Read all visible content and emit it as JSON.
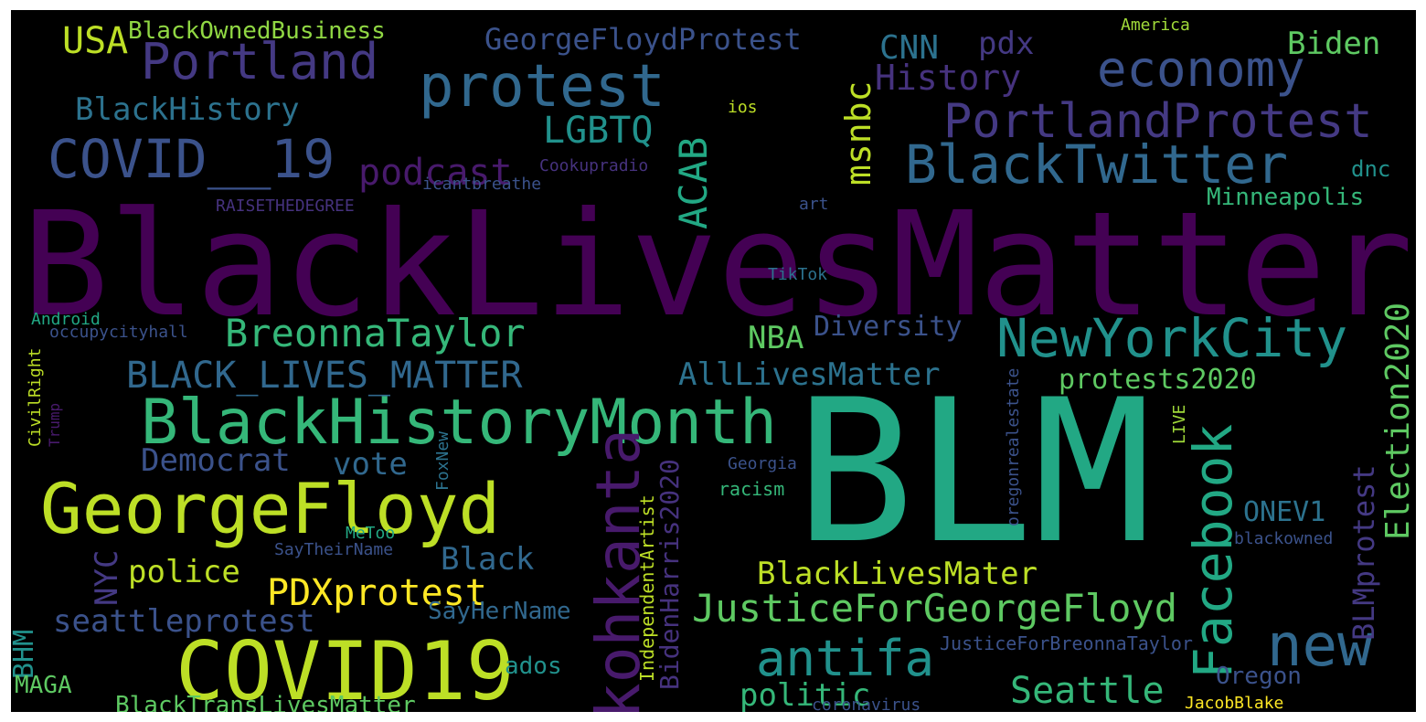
{
  "palette": {
    "background": "#000000",
    "viridis": [
      "#440154",
      "#3b528b",
      "#21918c",
      "#22a884",
      "#5ec962",
      "#bddf26",
      "#fde725"
    ]
  },
  "words": [
    {
      "text": "BlackLivesMatter",
      "color": "#440154"
    },
    {
      "text": "BLM",
      "color": "#22a884"
    },
    {
      "text": "GeorgeFloyd",
      "color": "#bddf26"
    },
    {
      "text": "COVID19",
      "color": "#bddf26"
    },
    {
      "text": "BlackHistoryMonth",
      "color": "#35b779"
    },
    {
      "text": "protest",
      "color": "#31688e"
    },
    {
      "text": "Portland",
      "color": "#443983"
    },
    {
      "text": "COVID__19",
      "color": "#3b528b"
    },
    {
      "text": "economy",
      "color": "#3b528b"
    },
    {
      "text": "BlackTwitter",
      "color": "#31688e"
    },
    {
      "text": "PortlandProtest",
      "color": "#443983"
    },
    {
      "text": "NewYorkCity",
      "color": "#21918c"
    },
    {
      "text": "Facebook",
      "color": "#22a884"
    },
    {
      "text": "new",
      "color": "#31688e"
    },
    {
      "text": "kohkanta",
      "color": "#481a6c"
    },
    {
      "text": "JusticeForGeorgeFloyd",
      "color": "#5ec962"
    },
    {
      "text": "antifa",
      "color": "#21918c"
    },
    {
      "text": "BreonnaTaylor",
      "color": "#35b779"
    },
    {
      "text": "BLACK_LIVES_MATTER",
      "color": "#31688e"
    },
    {
      "text": "PDXprotest",
      "color": "#fde725"
    },
    {
      "text": "BlackLivesMater",
      "color": "#bddf26"
    },
    {
      "text": "Seattle",
      "color": "#35b779"
    },
    {
      "text": "AllLivesMatter",
      "color": "#2c728e"
    },
    {
      "text": "politic",
      "color": "#35b779"
    },
    {
      "text": "LGBTQ",
      "color": "#21918c"
    },
    {
      "text": "podcast",
      "color": "#481a6c"
    },
    {
      "text": "History",
      "color": "#46327e"
    },
    {
      "text": "GeorgeFloydProtest",
      "color": "#3b528b"
    },
    {
      "text": "BlackHistory",
      "color": "#2c728e"
    },
    {
      "text": "USA",
      "color": "#bddf26"
    },
    {
      "text": "BlackOwnedBusiness",
      "color": "#90d743"
    },
    {
      "text": "CNN",
      "color": "#2c728e"
    },
    {
      "text": "pdx",
      "color": "#443983"
    },
    {
      "text": "Biden",
      "color": "#5ec962"
    },
    {
      "text": "ACAB",
      "color": "#22a884"
    },
    {
      "text": "msnbc",
      "color": "#bddf26"
    },
    {
      "text": "Election2020",
      "color": "#5ec962"
    },
    {
      "text": "BLMprotest",
      "color": "#443983"
    },
    {
      "text": "BidenHarris2020",
      "color": "#46327e"
    },
    {
      "text": "protests2020",
      "color": "#5ec962"
    },
    {
      "text": "Democrat",
      "color": "#3b528b"
    },
    {
      "text": "vote",
      "color": "#31688e"
    },
    {
      "text": "NBA",
      "color": "#5ec962"
    },
    {
      "text": "Diversity",
      "color": "#3b528b"
    },
    {
      "text": "seattleprotest",
      "color": "#3b528b"
    },
    {
      "text": "police",
      "color": "#bddf26"
    },
    {
      "text": "Black",
      "color": "#31688e"
    },
    {
      "text": "NYC",
      "color": "#443983"
    },
    {
      "text": "BHM",
      "color": "#21918c"
    },
    {
      "text": "MAGA",
      "color": "#5ec962"
    },
    {
      "text": "BlackTransLivesMatter",
      "color": "#5ec962"
    },
    {
      "text": "SayHerName",
      "color": "#31688e"
    },
    {
      "text": "ONEV1",
      "color": "#2c728e"
    },
    {
      "text": "Oregon",
      "color": "#3b528b"
    },
    {
      "text": "ados",
      "color": "#21918c"
    },
    {
      "text": "Minneapolis",
      "color": "#35b779"
    },
    {
      "text": "dnc",
      "color": "#21918c"
    },
    {
      "text": "JacobBlake",
      "color": "#fde725"
    },
    {
      "text": "coronavirus",
      "color": "#3b528b"
    },
    {
      "text": "JusticeForBreonnaTaylor",
      "color": "#3b528b"
    },
    {
      "text": "IndependentArtist",
      "color": "#bddf26"
    },
    {
      "text": "oregonrealestate",
      "color": "#3b528b"
    },
    {
      "text": "LIVE",
      "color": "#a0da39"
    },
    {
      "text": "racism",
      "color": "#35b779"
    },
    {
      "text": "Georgia",
      "color": "#3b528b"
    },
    {
      "text": "FoxNew",
      "color": "#2c728e"
    },
    {
      "text": "MeToo",
      "color": "#22a884"
    },
    {
      "text": "SayTheirName",
      "color": "#3b528b"
    },
    {
      "text": "blackowned",
      "color": "#3b528b"
    },
    {
      "text": "TikTok",
      "color": "#2c728e"
    },
    {
      "text": "art",
      "color": "#3b528b"
    },
    {
      "text": "ios",
      "color": "#bddf26"
    },
    {
      "text": "America",
      "color": "#a0da39"
    },
    {
      "text": "Cookupradio",
      "color": "#46327e"
    },
    {
      "text": "icantbreathe",
      "color": "#3b528b"
    },
    {
      "text": "RAISETHEDEGREE",
      "color": "#46327e"
    },
    {
      "text": "Android",
      "color": "#22a884"
    },
    {
      "text": "occupycityhall",
      "color": "#3b528b"
    },
    {
      "text": "CivilRight",
      "color": "#bddf26"
    },
    {
      "text": "Trump",
      "color": "#481a6c"
    }
  ]
}
